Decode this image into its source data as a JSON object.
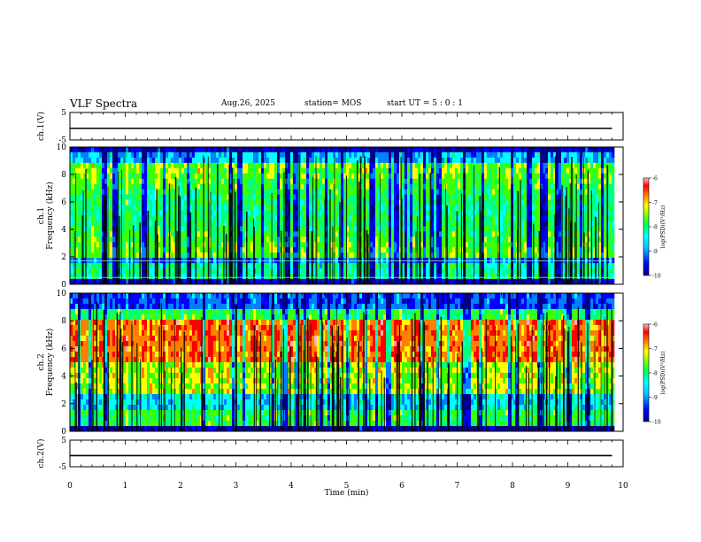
{
  "header": {
    "title": "VLF Spectra",
    "date": "Aug.26, 2025",
    "station": "station= MOS",
    "start_ut": "start UT =  5 : 0 : 1"
  },
  "colors": {
    "colormap": [
      "#000088",
      "#0000ff",
      "#0080ff",
      "#00ffff",
      "#00ff80",
      "#40ff00",
      "#ffff00",
      "#ff8000",
      "#ff0000",
      "#ffb0b0"
    ],
    "trace": "#000000",
    "frame": "#000000"
  },
  "chart_data": [
    {
      "type": "line",
      "panel": "ch1-waveform",
      "ylabel": "ch.1(V)",
      "ylim": [
        -5,
        5
      ],
      "yticks": [
        "5",
        "-5"
      ],
      "series": [
        {
          "values": [
            -0.8,
            -0.8,
            -0.8,
            -0.8,
            -0.8
          ]
        }
      ],
      "x": [
        0,
        2.5,
        5,
        7.5,
        9.8
      ]
    },
    {
      "type": "heatmap",
      "panel": "ch1-spectrogram",
      "ylabel": "ch.1\nFrequency (kHz)",
      "ylim": [
        0,
        10
      ],
      "yticks": [
        "0",
        "2",
        "4",
        "6",
        "8",
        "10"
      ],
      "colorbar": {
        "label": "log(PSD)(V²/Hz)",
        "range": [
          -10,
          -6
        ],
        "ticks": [
          "-6",
          "-7",
          "-8",
          "-9",
          "-10"
        ]
      }
    },
    {
      "type": "heatmap",
      "panel": "ch2-spectrogram",
      "ylabel": "ch.2\nFrequency (kHz)",
      "ylim": [
        0,
        10
      ],
      "yticks": [
        "0",
        "2",
        "4",
        "6",
        "8",
        "10"
      ],
      "colorbar": {
        "label": "log(PSD)(V²/Hz)",
        "range": [
          -10,
          -6
        ],
        "ticks": [
          "-6",
          "-7",
          "-8",
          "-9",
          "-10"
        ]
      }
    },
    {
      "type": "line",
      "panel": "ch2-waveform",
      "ylabel": "ch.2(V)",
      "ylim": [
        -5,
        5
      ],
      "yticks": [
        "5",
        "-5"
      ],
      "series": [
        {
          "values": [
            -0.8,
            -0.8,
            -0.8,
            -0.8,
            -0.8
          ]
        }
      ],
      "x": [
        0,
        2.5,
        5,
        7.5,
        9.8
      ]
    }
  ],
  "xaxis": {
    "label": "Time (min)",
    "range": [
      0,
      10
    ],
    "ticks": [
      "0",
      "1",
      "2",
      "3",
      "4",
      "5",
      "6",
      "7",
      "8",
      "9",
      "10"
    ]
  }
}
